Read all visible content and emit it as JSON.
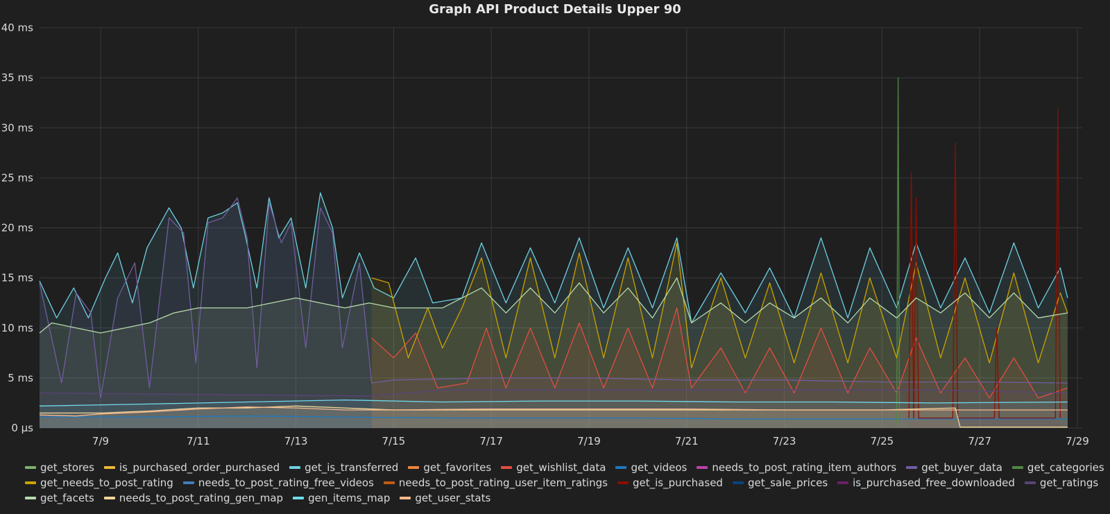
{
  "panel": {
    "title": "Graph API Product Details Upper 90"
  },
  "chart_data": {
    "type": "line",
    "title": "Graph API Product Details Upper 90",
    "xlabel": "",
    "ylabel": "",
    "x_range": [
      "7/7 18:00",
      "7/28 18:00"
    ],
    "ylim": [
      0,
      40
    ],
    "yticks": [
      {
        "value": 0,
        "label": "0 µs"
      },
      {
        "value": 5,
        "label": "5 ms"
      },
      {
        "value": 10,
        "label": "10 ms"
      },
      {
        "value": 15,
        "label": "15 ms"
      },
      {
        "value": 20,
        "label": "20 ms"
      },
      {
        "value": 25,
        "label": "25 ms"
      },
      {
        "value": 30,
        "label": "30 ms"
      },
      {
        "value": 35,
        "label": "35 ms"
      },
      {
        "value": 40,
        "label": "40 ms"
      }
    ],
    "xticks": [
      "7/9",
      "7/11",
      "7/13",
      "7/15",
      "7/17",
      "7/19",
      "7/21",
      "7/23",
      "7/25",
      "7/27",
      "7/29"
    ],
    "grid": true,
    "legend_position": "bottom",
    "series": [
      {
        "name": "get_stores",
        "color": "#7eb26d"
      },
      {
        "name": "is_purchased_order_purchased",
        "color": "#eab839"
      },
      {
        "name": "get_is_transferred",
        "color": "#6ed0e0",
        "values": [
          [
            7.75,
            14.7
          ],
          [
            8.1,
            11.0
          ],
          [
            8.45,
            14.0
          ],
          [
            8.75,
            11.0
          ],
          [
            9.1,
            15.0
          ],
          [
            9.35,
            17.5
          ],
          [
            9.65,
            12.5
          ],
          [
            9.95,
            18.0
          ],
          [
            10.4,
            22.0
          ],
          [
            10.65,
            20.0
          ],
          [
            10.9,
            14.0
          ],
          [
            11.2,
            21.0
          ],
          [
            11.5,
            21.5
          ],
          [
            11.8,
            22.5
          ],
          [
            11.95,
            19.5
          ],
          [
            12.2,
            14.0
          ],
          [
            12.45,
            23.0
          ],
          [
            12.65,
            19.0
          ],
          [
            12.9,
            21.0
          ],
          [
            13.2,
            14.0
          ],
          [
            13.5,
            23.5
          ],
          [
            13.75,
            20.0
          ],
          [
            13.95,
            13.0
          ],
          [
            14.3,
            17.5
          ],
          [
            14.6,
            14.0
          ],
          [
            15.0,
            13.0
          ],
          [
            15.45,
            17.0
          ],
          [
            15.8,
            12.5
          ],
          [
            16.4,
            13.0
          ],
          [
            16.8,
            18.5
          ],
          [
            17.3,
            12.5
          ],
          [
            17.8,
            18.0
          ],
          [
            18.3,
            12.5
          ],
          [
            18.8,
            19.0
          ],
          [
            19.3,
            12.0
          ],
          [
            19.8,
            18.0
          ],
          [
            20.3,
            12.0
          ],
          [
            20.8,
            19.0
          ],
          [
            21.1,
            10.5
          ],
          [
            21.7,
            15.5
          ],
          [
            22.2,
            11.5
          ],
          [
            22.7,
            16.0
          ],
          [
            23.2,
            11.0
          ],
          [
            23.75,
            19.0
          ],
          [
            24.3,
            11.0
          ],
          [
            24.75,
            18.0
          ],
          [
            25.3,
            12.0
          ],
          [
            25.7,
            18.5
          ],
          [
            26.2,
            12.0
          ],
          [
            26.7,
            17.0
          ],
          [
            27.2,
            11.5
          ],
          [
            27.7,
            18.5
          ],
          [
            28.2,
            12.0
          ],
          [
            28.65,
            16.0
          ],
          [
            28.8,
            13.0
          ]
        ]
      },
      {
        "name": "get_favorites",
        "color": "#ef843c"
      },
      {
        "name": "get_wishlist_data",
        "color": "#e24d42",
        "values": [
          [
            14.55,
            9.0
          ],
          [
            15.0,
            7.0
          ],
          [
            15.45,
            9.5
          ],
          [
            15.9,
            4.0
          ],
          [
            16.5,
            4.5
          ],
          [
            16.9,
            10.0
          ],
          [
            17.3,
            4.0
          ],
          [
            17.8,
            10.0
          ],
          [
            18.3,
            4.0
          ],
          [
            18.8,
            10.5
          ],
          [
            19.3,
            4.0
          ],
          [
            19.8,
            10.0
          ],
          [
            20.3,
            4.0
          ],
          [
            20.8,
            12.0
          ],
          [
            21.1,
            4.0
          ],
          [
            21.7,
            8.0
          ],
          [
            22.2,
            3.5
          ],
          [
            22.7,
            8.0
          ],
          [
            23.2,
            3.5
          ],
          [
            23.75,
            10.0
          ],
          [
            24.3,
            3.5
          ],
          [
            24.75,
            8.0
          ],
          [
            25.3,
            3.5
          ],
          [
            25.7,
            9.0
          ],
          [
            26.2,
            3.5
          ],
          [
            26.7,
            7.0
          ],
          [
            27.2,
            3.0
          ],
          [
            27.7,
            7.0
          ],
          [
            28.2,
            3.0
          ],
          [
            28.8,
            4.0
          ]
        ]
      },
      {
        "name": "get_videos",
        "color": "#1f78c1",
        "values": [
          [
            7.75,
            1.1
          ],
          [
            10.0,
            1.1
          ],
          [
            12.0,
            1.2
          ],
          [
            14.0,
            1.1
          ],
          [
            16.0,
            1.0
          ],
          [
            18.0,
            1.0
          ],
          [
            20.0,
            1.0
          ],
          [
            22.0,
            0.9
          ],
          [
            24.0,
            0.9
          ],
          [
            26.0,
            0.9
          ],
          [
            28.8,
            0.9
          ]
        ]
      },
      {
        "name": "needs_to_post_rating_item_authors",
        "color": "#ba43a9"
      },
      {
        "name": "get_buyer_data",
        "color": "#705da0",
        "values": [
          [
            7.75,
            14.5
          ],
          [
            8.2,
            4.5
          ],
          [
            8.5,
            13.5
          ],
          [
            8.8,
            11.5
          ],
          [
            9.0,
            3.0
          ],
          [
            9.35,
            13.0
          ],
          [
            9.7,
            16.5
          ],
          [
            10.0,
            4.0
          ],
          [
            10.4,
            21.0
          ],
          [
            10.7,
            19.5
          ],
          [
            10.95,
            6.5
          ],
          [
            11.2,
            20.5
          ],
          [
            11.5,
            21.0
          ],
          [
            11.8,
            23.0
          ],
          [
            12.0,
            19.0
          ],
          [
            12.2,
            6.0
          ],
          [
            12.45,
            22.5
          ],
          [
            12.7,
            18.5
          ],
          [
            12.9,
            20.5
          ],
          [
            13.2,
            8.0
          ],
          [
            13.5,
            22.0
          ],
          [
            13.75,
            19.5
          ],
          [
            13.95,
            8.0
          ],
          [
            14.3,
            16.5
          ],
          [
            14.55,
            4.5
          ],
          [
            15.0,
            4.8
          ],
          [
            17.0,
            5.0
          ],
          [
            19.0,
            5.0
          ],
          [
            21.0,
            4.8
          ],
          [
            23.0,
            4.8
          ],
          [
            25.0,
            4.6
          ],
          [
            27.0,
            4.6
          ],
          [
            28.8,
            4.5
          ]
        ]
      },
      {
        "name": "get_categories",
        "color": "#508642",
        "values": [
          [
            25.3,
            0.5
          ],
          [
            25.33,
            35.0
          ],
          [
            25.36,
            0.5
          ]
        ]
      },
      {
        "name": "get_needs_to_post_rating",
        "color": "#cca300",
        "values": [
          [
            14.55,
            15.0
          ],
          [
            14.9,
            14.5
          ],
          [
            15.3,
            7.0
          ],
          [
            15.7,
            12.0
          ],
          [
            16.0,
            8.0
          ],
          [
            16.4,
            12.0
          ],
          [
            16.8,
            17.0
          ],
          [
            17.3,
            7.0
          ],
          [
            17.8,
            17.0
          ],
          [
            18.3,
            7.0
          ],
          [
            18.8,
            17.5
          ],
          [
            19.3,
            7.0
          ],
          [
            19.8,
            17.0
          ],
          [
            20.3,
            7.0
          ],
          [
            20.8,
            18.5
          ],
          [
            21.1,
            6.0
          ],
          [
            21.7,
            15.0
          ],
          [
            22.2,
            7.0
          ],
          [
            22.7,
            14.5
          ],
          [
            23.2,
            6.5
          ],
          [
            23.75,
            15.5
          ],
          [
            24.3,
            6.5
          ],
          [
            24.75,
            15.0
          ],
          [
            25.3,
            7.0
          ],
          [
            25.7,
            16.5
          ],
          [
            26.2,
            7.0
          ],
          [
            26.7,
            15.0
          ],
          [
            27.2,
            6.5
          ],
          [
            27.7,
            15.5
          ],
          [
            28.2,
            6.5
          ],
          [
            28.65,
            13.5
          ],
          [
            28.8,
            11.5
          ]
        ]
      },
      {
        "name": "needs_to_post_rating_free_videos",
        "color": "#447ebc"
      },
      {
        "name": "needs_to_post_rating_user_item_ratings",
        "color": "#c15c17"
      },
      {
        "name": "get_is_purchased",
        "color": "#890f02",
        "values": [
          [
            25.55,
            1.0
          ],
          [
            25.6,
            25.5
          ],
          [
            25.65,
            1.0
          ],
          [
            25.7,
            23.0
          ],
          [
            25.75,
            1.0
          ],
          [
            26.45,
            1.0
          ],
          [
            26.5,
            28.5
          ],
          [
            26.55,
            1.0
          ],
          [
            27.3,
            1.0
          ],
          [
            27.35,
            10.0
          ],
          [
            27.4,
            1.0
          ],
          [
            28.55,
            1.0
          ],
          [
            28.6,
            32.0
          ],
          [
            28.65,
            1.0
          ]
        ]
      },
      {
        "name": "get_sale_prices",
        "color": "#0a437c"
      },
      {
        "name": "is_purchased_free_downloaded",
        "color": "#6d1f62"
      },
      {
        "name": "get_ratings",
        "color": "#584477",
        "values": [
          [
            7.75,
            3.5
          ],
          [
            14.5,
            3.2
          ],
          [
            16.0,
            3.8
          ],
          [
            18.0,
            3.8
          ],
          [
            20.0,
            3.8
          ],
          [
            22.0,
            3.8
          ],
          [
            24.0,
            3.8
          ],
          [
            26.0,
            3.8
          ],
          [
            28.8,
            3.5
          ]
        ]
      },
      {
        "name": "get_facets",
        "color": "#b7dbab",
        "values": [
          [
            7.75,
            9.5
          ],
          [
            8.0,
            10.5
          ],
          [
            8.5,
            10.0
          ],
          [
            9.0,
            9.5
          ],
          [
            9.5,
            10.0
          ],
          [
            10.0,
            10.5
          ],
          [
            10.5,
            11.5
          ],
          [
            11.0,
            12.0
          ],
          [
            11.5,
            12.0
          ],
          [
            12.0,
            12.0
          ],
          [
            12.5,
            12.5
          ],
          [
            13.0,
            13.0
          ],
          [
            13.5,
            12.5
          ],
          [
            14.0,
            12.0
          ],
          [
            14.5,
            12.5
          ],
          [
            15.0,
            12.0
          ],
          [
            16.0,
            12.0
          ],
          [
            16.8,
            14.0
          ],
          [
            17.3,
            11.5
          ],
          [
            17.8,
            14.0
          ],
          [
            18.3,
            11.5
          ],
          [
            18.8,
            14.5
          ],
          [
            19.3,
            11.5
          ],
          [
            19.8,
            14.0
          ],
          [
            20.3,
            11.0
          ],
          [
            20.8,
            15.0
          ],
          [
            21.1,
            10.5
          ],
          [
            21.7,
            12.5
          ],
          [
            22.2,
            10.5
          ],
          [
            22.7,
            12.5
          ],
          [
            23.2,
            11.0
          ],
          [
            23.75,
            13.0
          ],
          [
            24.3,
            10.5
          ],
          [
            24.75,
            13.0
          ],
          [
            25.3,
            11.0
          ],
          [
            25.7,
            13.0
          ],
          [
            26.2,
            11.5
          ],
          [
            26.7,
            13.5
          ],
          [
            27.2,
            11.0
          ],
          [
            27.7,
            13.5
          ],
          [
            28.2,
            11.0
          ],
          [
            28.8,
            11.5
          ]
        ]
      },
      {
        "name": "needs_to_post_rating_gen_map",
        "color": "#f4d598",
        "values": [
          [
            7.75,
            1.5
          ],
          [
            9.0,
            1.5
          ],
          [
            10.0,
            1.7
          ],
          [
            11.0,
            2.0
          ],
          [
            12.0,
            2.0
          ],
          [
            13.0,
            2.2
          ],
          [
            14.0,
            2.0
          ],
          [
            15.0,
            1.8
          ],
          [
            17.0,
            1.8
          ],
          [
            19.0,
            1.8
          ],
          [
            21.0,
            1.8
          ],
          [
            23.0,
            1.8
          ],
          [
            25.0,
            1.8
          ],
          [
            26.5,
            2.0
          ],
          [
            26.6,
            0.1
          ],
          [
            28.8,
            0.1
          ]
        ]
      },
      {
        "name": "gen_items_map",
        "color": "#70dbed",
        "values": [
          [
            7.75,
            2.2
          ],
          [
            10.0,
            2.4
          ],
          [
            12.0,
            2.6
          ],
          [
            14.0,
            2.8
          ],
          [
            16.0,
            2.6
          ],
          [
            18.0,
            2.7
          ],
          [
            20.0,
            2.7
          ],
          [
            22.0,
            2.6
          ],
          [
            24.0,
            2.6
          ],
          [
            26.0,
            2.5
          ],
          [
            28.8,
            2.6
          ]
        ]
      },
      {
        "name": "get_user_stats",
        "color": "#f9ba8f",
        "values": [
          [
            7.75,
            1.3
          ],
          [
            8.5,
            1.2
          ],
          [
            9.0,
            1.4
          ],
          [
            10.0,
            1.6
          ],
          [
            11.0,
            1.9
          ],
          [
            12.0,
            2.1
          ],
          [
            13.0,
            2.0
          ],
          [
            14.0,
            1.8
          ],
          [
            15.0,
            1.8
          ],
          [
            17.0,
            1.9
          ],
          [
            19.0,
            1.9
          ],
          [
            21.0,
            1.9
          ],
          [
            23.0,
            1.8
          ],
          [
            25.0,
            1.8
          ],
          [
            27.0,
            1.8
          ],
          [
            28.8,
            1.8
          ]
        ]
      }
    ]
  }
}
